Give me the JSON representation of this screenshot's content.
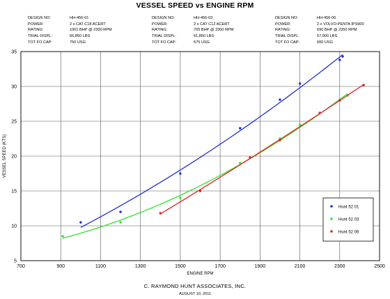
{
  "page": {
    "title": "VESSEL SPEED vs ENGINE RPM",
    "company": "C. RAYMOND HUNT ASSOCIATES, INC.",
    "date": "AUGUST 10, 2011"
  },
  "specs": [
    {
      "design_no": {
        "label": "DESIGN NO:",
        "value": "HH-456-01"
      },
      "power": {
        "label": "POWER:",
        "value": "2 x CAT C18 ACERT"
      },
      "rating": {
        "label": "RATING:",
        "value": "1001 BHP @ 2300 RPM"
      },
      "trial_displ": {
        "label": "TRIAL DISPL:",
        "value": "66,850 LBS"
      },
      "tot_fo_cap": {
        "label": "TOT FO CAP:",
        "value": "750 USG"
      }
    },
    {
      "design_no": {
        "label": "DESIGN NO:",
        "value": "HH-456-03"
      },
      "power": {
        "label": "POWER:",
        "value": "2 x CAT C12 ACERT"
      },
      "rating": {
        "label": "RATING:",
        "value": "705 BHP @ 2300 RPM"
      },
      "trial_displ": {
        "label": "TRIAL DISPL:",
        "value": "61,850 LBS"
      },
      "tot_fo_cap": {
        "label": "TOT FO CAP:",
        "value": "675 USG"
      }
    },
    {
      "design_no": {
        "label": "DESIGN NO:",
        "value": "HH-456-06"
      },
      "power": {
        "label": "POWER:",
        "value": "2 x VOLVO-PENTA IPS900"
      },
      "rating": {
        "label": "RATING:",
        "value": "690 BHP @ 2350 RPM"
      },
      "trial_displ": {
        "label": "TRIAL DISPL:",
        "value": "57,900 LBS"
      },
      "tot_fo_cap": {
        "label": "TOT FO CAP:",
        "value": "600 USG"
      }
    }
  ],
  "chart_data": {
    "type": "scatter",
    "title": "VESSEL SPEED vs ENGINE RPM",
    "xlabel": "ENGINE RPM",
    "ylabel": "VESSEL SPEED (KTS)",
    "xlim": [
      700,
      2500
    ],
    "ylim": [
      5,
      35
    ],
    "xticks": [
      700,
      900,
      1100,
      1300,
      1500,
      1700,
      1900,
      2100,
      2300,
      2500
    ],
    "yticks": [
      5,
      10,
      15,
      20,
      25,
      30,
      35
    ],
    "grid": true,
    "legend_position": "right",
    "trendlines": true,
    "series": [
      {
        "name": "Hunt 52 01",
        "color": "#1f2fd0",
        "points": [
          [
            1000,
            10.5
          ],
          [
            1200,
            12.0
          ],
          [
            1500,
            17.5
          ],
          [
            1800,
            24.0
          ],
          [
            2000,
            28.1
          ],
          [
            2100,
            30.4
          ],
          [
            2300,
            33.8
          ],
          [
            2315,
            34.3
          ]
        ]
      },
      {
        "name": "Hunt 52 03",
        "color": "#33e033",
        "points": [
          [
            910,
            8.5
          ],
          [
            1200,
            10.5
          ],
          [
            1500,
            14.0
          ],
          [
            1800,
            19.0
          ],
          [
            2000,
            22.5
          ],
          [
            2100,
            24.5
          ],
          [
            2300,
            28.0
          ],
          [
            2340,
            28.7
          ]
        ]
      },
      {
        "name": "Hunt 52 06",
        "color": "#e02020",
        "points": [
          [
            1400,
            11.8
          ],
          [
            1600,
            15.0
          ],
          [
            1850,
            19.8
          ],
          [
            2000,
            22.3
          ],
          [
            2200,
            26.2
          ],
          [
            2300,
            28.0
          ],
          [
            2420,
            30.2
          ]
        ]
      }
    ]
  }
}
